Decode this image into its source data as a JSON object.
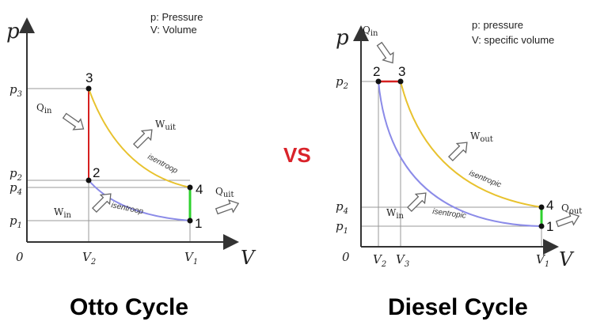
{
  "otto": {
    "title": "Otto Cycle",
    "legend": {
      "pressure": "p:  Pressure",
      "volume": "V:  Volume"
    },
    "axes": {
      "y": "p",
      "x": "V",
      "origin": "0"
    },
    "ticks": {
      "p3": "p",
      "p3_sub": "3",
      "p2": "p",
      "p2_sub": "2",
      "p4": "p",
      "p4_sub": "4",
      "p1": "p",
      "p1_sub": "1",
      "v2": "V",
      "v2_sub": "2",
      "v1": "V",
      "v1_sub": "1"
    },
    "points": {
      "p1": "1",
      "p2": "2",
      "p3": "3",
      "p4": "4"
    },
    "heat": {
      "qin": "Q",
      "qin_sub": "in",
      "quit": "Q",
      "quit_sub": "uit"
    },
    "work": {
      "win": "W",
      "win_sub": "in",
      "wuit": "W",
      "wuit_sub": "uit"
    },
    "curves": {
      "upper": "isentroop",
      "lower": "isentroop"
    }
  },
  "vs": "VS",
  "diesel": {
    "title": "Diesel Cycle",
    "legend": {
      "pressure": "p: pressure",
      "volume": "V: specific volume"
    },
    "axes": {
      "y": "p",
      "x": "V",
      "origin": "0"
    },
    "ticks": {
      "p2": "p",
      "p2_sub": "2",
      "p4": "p",
      "p4_sub": "4",
      "p1": "p",
      "p1_sub": "1",
      "v2": "V",
      "v2_sub": "2",
      "v3": "V",
      "v3_sub": "3",
      "v1": "V",
      "v1_sub": "1"
    },
    "points": {
      "p1": "1",
      "p2": "2",
      "p3": "3",
      "p4": "4"
    },
    "heat": {
      "qin": "Q",
      "qin_sub": "in",
      "qout": "Q",
      "qout_sub": "out"
    },
    "work": {
      "win": "W",
      "win_sub": "in",
      "wout": "W",
      "wout_sub": "out"
    },
    "curves": {
      "upper": "isentropic",
      "lower": "isentropic"
    }
  },
  "colors": {
    "heat_add": "#d62020",
    "heat_reject": "#2ed12e",
    "expansion": "#e8c22e",
    "compression": "#8b8be8"
  }
}
